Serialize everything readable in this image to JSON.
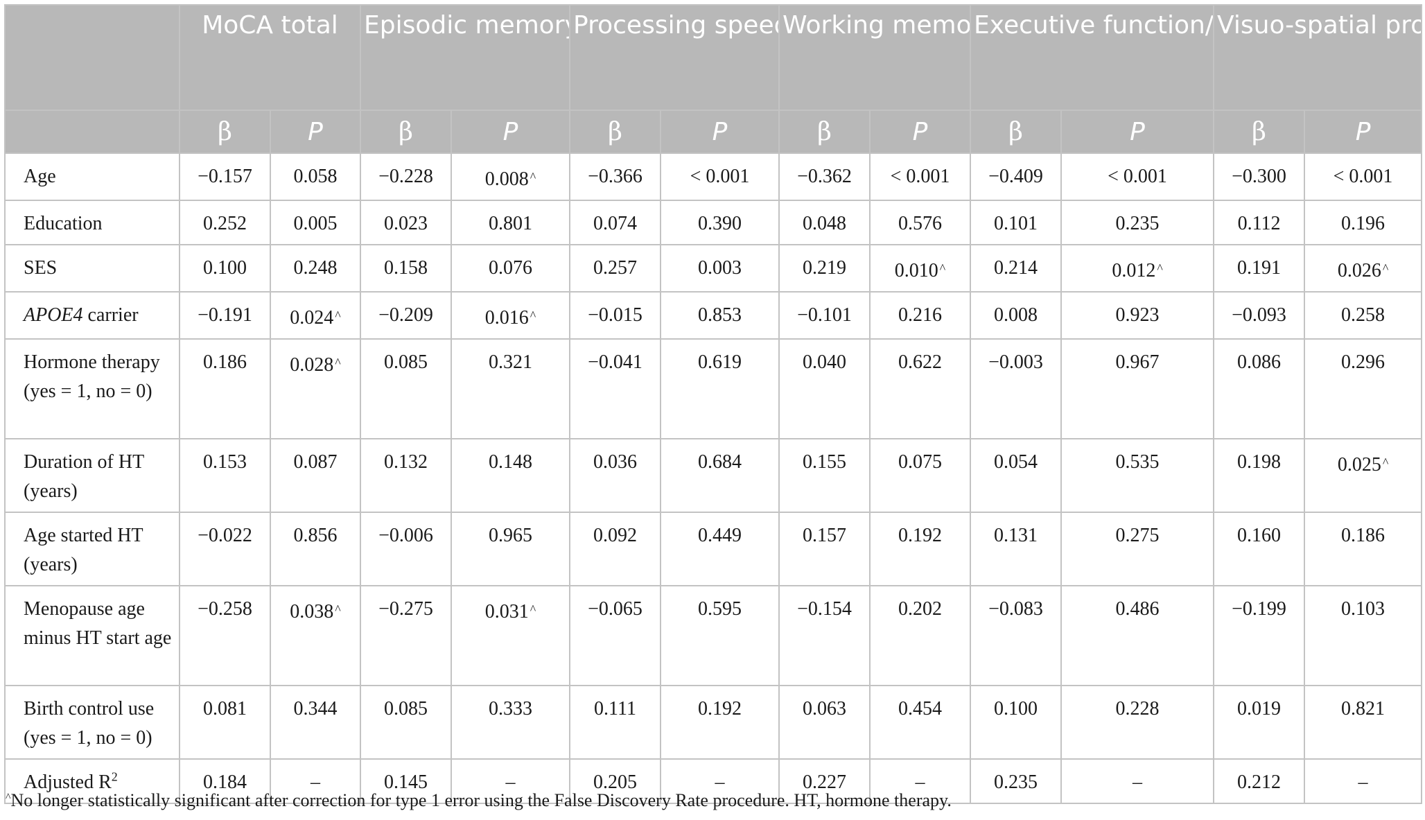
{
  "table": {
    "columns": [
      {
        "id": "moca",
        "title": "MoCA total"
      },
      {
        "id": "episodic",
        "title": "Episodic memory"
      },
      {
        "id": "speed",
        "title": "Processing speed"
      },
      {
        "id": "working",
        "title": "Working memory"
      },
      {
        "id": "executive",
        "title": "Executive function/attention control"
      },
      {
        "id": "visuo",
        "title": "Visuo-spatial processing"
      }
    ],
    "beta_label": "β",
    "p_label": "P",
    "rows": [
      {
        "label": "Age",
        "cells": [
          [
            "−0.157",
            "0.058",
            ""
          ],
          [
            "−0.228",
            "0.008",
            "^"
          ],
          [
            "−0.366",
            "< 0.001",
            ""
          ],
          [
            "−0.362",
            "< 0.001",
            ""
          ],
          [
            "−0.409",
            "< 0.001",
            ""
          ],
          [
            "−0.300",
            "< 0.001",
            ""
          ]
        ]
      },
      {
        "label": "Education",
        "cells": [
          [
            "0.252",
            "0.005",
            ""
          ],
          [
            "0.023",
            "0.801",
            ""
          ],
          [
            "0.074",
            "0.390",
            ""
          ],
          [
            "0.048",
            "0.576",
            ""
          ],
          [
            "0.101",
            "0.235",
            ""
          ],
          [
            "0.112",
            "0.196",
            ""
          ]
        ]
      },
      {
        "label": "SES",
        "cells": [
          [
            "0.100",
            "0.248",
            ""
          ],
          [
            "0.158",
            "0.076",
            ""
          ],
          [
            "0.257",
            "0.003",
            ""
          ],
          [
            "0.219",
            "0.010",
            "^"
          ],
          [
            "0.214",
            "0.012",
            "^"
          ],
          [
            "0.191",
            "0.026",
            "^"
          ]
        ]
      },
      {
        "label": "APOE4 carrier",
        "italic_part": "APOE4",
        "plain_part": " carrier",
        "cells": [
          [
            "−0.191",
            "0.024",
            "^"
          ],
          [
            "−0.209",
            "0.016",
            "^"
          ],
          [
            "−0.015",
            "0.853",
            ""
          ],
          [
            "−0.101",
            "0.216",
            ""
          ],
          [
            "0.008",
            "0.923",
            ""
          ],
          [
            "−0.093",
            "0.258",
            ""
          ]
        ]
      },
      {
        "label": "Hormone therapy (yes = 1, no = 0)",
        "cells": [
          [
            "0.186",
            "0.028",
            "^"
          ],
          [
            "0.085",
            "0.321",
            ""
          ],
          [
            "−0.041",
            "0.619",
            ""
          ],
          [
            "0.040",
            "0.622",
            ""
          ],
          [
            "−0.003",
            "0.967",
            ""
          ],
          [
            "0.086",
            "0.296",
            ""
          ]
        ]
      },
      {
        "label": "Duration of HT (years)",
        "cells": [
          [
            "0.153",
            "0.087",
            ""
          ],
          [
            "0.132",
            "0.148",
            ""
          ],
          [
            "0.036",
            "0.684",
            ""
          ],
          [
            "0.155",
            "0.075",
            ""
          ],
          [
            "0.054",
            "0.535",
            ""
          ],
          [
            "0.198",
            "0.025",
            "^"
          ]
        ]
      },
      {
        "label": "Age started HT (years)",
        "cells": [
          [
            "−0.022",
            "0.856",
            ""
          ],
          [
            "−0.006",
            "0.965",
            ""
          ],
          [
            "0.092",
            "0.449",
            ""
          ],
          [
            "0.157",
            "0.192",
            ""
          ],
          [
            "0.131",
            "0.275",
            ""
          ],
          [
            "0.160",
            "0.186",
            ""
          ]
        ]
      },
      {
        "label": "Menopause age minus HT start age",
        "cells": [
          [
            "−0.258",
            "0.038",
            "^"
          ],
          [
            "−0.275",
            "0.031",
            "^"
          ],
          [
            "−0.065",
            "0.595",
            ""
          ],
          [
            "−0.154",
            "0.202",
            ""
          ],
          [
            "−0.083",
            "0.486",
            ""
          ],
          [
            "−0.199",
            "0.103",
            ""
          ]
        ]
      },
      {
        "label": "Birth control use (yes = 1, no = 0)",
        "cells": [
          [
            "0.081",
            "0.344",
            ""
          ],
          [
            "0.085",
            "0.333",
            ""
          ],
          [
            "0.111",
            "0.192",
            ""
          ],
          [
            "0.063",
            "0.454",
            ""
          ],
          [
            "0.100",
            "0.228",
            ""
          ],
          [
            "0.019",
            "0.821",
            ""
          ]
        ]
      },
      {
        "label": "Adjusted R2",
        "label_base": "Adjusted R",
        "label_sup": "2",
        "cells": [
          [
            "0.184",
            "–",
            ""
          ],
          [
            "0.145",
            "–",
            ""
          ],
          [
            "0.205",
            "–",
            ""
          ],
          [
            "0.227",
            "–",
            ""
          ],
          [
            "0.235",
            "–",
            ""
          ],
          [
            "0.212",
            "–",
            ""
          ]
        ]
      }
    ]
  },
  "footnote": {
    "mark": "^",
    "text": "No longer statistically significant after correction for type 1 error using the False Discovery Rate procedure. HT, hormone therapy."
  }
}
